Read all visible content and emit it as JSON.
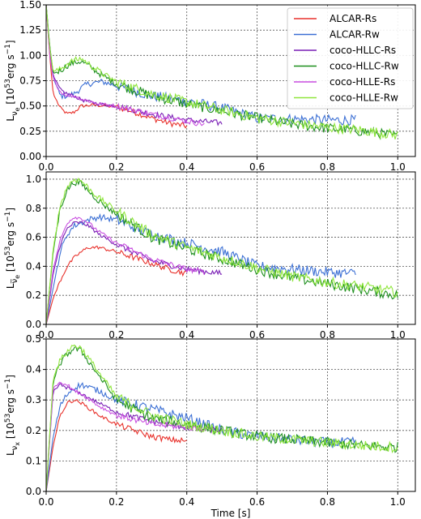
{
  "chart_data": [
    {
      "type": "line",
      "ylabel": "L_νe [10^53 erg s^-1]",
      "xlim": [
        0,
        1.05
      ],
      "ylim": [
        0,
        1.5
      ],
      "xticks": [
        0.0,
        0.2,
        0.4,
        0.6,
        0.8,
        1.0
      ],
      "yticks": [
        "0.00",
        "0.25",
        "0.50",
        "0.75",
        "1.00",
        "1.25",
        "1.50"
      ],
      "grid": true,
      "legend_position": "top-right",
      "series": [
        {
          "name": "ALCAR-Rs",
          "color": "#e8312b",
          "x": [
            0.0,
            0.01,
            0.02,
            0.04,
            0.06,
            0.08,
            0.1,
            0.14,
            0.2,
            0.25,
            0.3,
            0.35,
            0.4
          ],
          "y": [
            1.5,
            1.0,
            0.62,
            0.48,
            0.42,
            0.44,
            0.5,
            0.51,
            0.49,
            0.44,
            0.38,
            0.33,
            0.3
          ]
        },
        {
          "name": "ALCAR-Rw",
          "color": "#3b6fd4",
          "x": [
            0.0,
            0.01,
            0.02,
            0.04,
            0.06,
            0.08,
            0.1,
            0.12,
            0.16,
            0.2,
            0.3,
            0.4,
            0.5,
            0.6,
            0.7,
            0.8,
            0.88
          ],
          "y": [
            1.5,
            1.1,
            0.78,
            0.6,
            0.6,
            0.62,
            0.68,
            0.72,
            0.74,
            0.7,
            0.6,
            0.55,
            0.48,
            0.38,
            0.37,
            0.36,
            0.36
          ]
        },
        {
          "name": "coco-HLLC-Rs",
          "color": "#7a1fb5",
          "x": [
            0.0,
            0.01,
            0.02,
            0.04,
            0.06,
            0.08,
            0.1,
            0.15,
            0.2,
            0.3,
            0.4,
            0.5
          ],
          "y": [
            1.5,
            1.05,
            0.8,
            0.66,
            0.62,
            0.6,
            0.56,
            0.52,
            0.5,
            0.42,
            0.36,
            0.33
          ]
        },
        {
          "name": "coco-HLLC-Rw",
          "color": "#1e8f1e",
          "x": [
            0.0,
            0.01,
            0.02,
            0.04,
            0.06,
            0.08,
            0.1,
            0.12,
            0.16,
            0.2,
            0.3,
            0.4,
            0.5,
            0.6,
            0.7,
            0.8,
            0.9,
            1.0
          ],
          "y": [
            1.5,
            1.1,
            0.82,
            0.85,
            0.9,
            0.93,
            0.94,
            0.9,
            0.8,
            0.72,
            0.6,
            0.52,
            0.45,
            0.38,
            0.32,
            0.28,
            0.25,
            0.2
          ]
        },
        {
          "name": "coco-HLLE-Rs",
          "color": "#c94fe0",
          "x": [
            0.0,
            0.01,
            0.02,
            0.04,
            0.06,
            0.08,
            0.1,
            0.15,
            0.2,
            0.3,
            0.4,
            0.45
          ],
          "y": [
            1.5,
            1.0,
            0.78,
            0.64,
            0.6,
            0.6,
            0.57,
            0.52,
            0.5,
            0.42,
            0.35,
            0.32
          ]
        },
        {
          "name": "coco-HLLE-Rw",
          "color": "#8fe63c",
          "x": [
            0.0,
            0.01,
            0.02,
            0.04,
            0.06,
            0.08,
            0.1,
            0.12,
            0.16,
            0.2,
            0.3,
            0.4,
            0.5,
            0.6,
            0.7,
            0.8,
            0.9,
            1.0
          ],
          "y": [
            1.5,
            1.08,
            0.84,
            0.86,
            0.92,
            0.95,
            0.97,
            0.92,
            0.82,
            0.74,
            0.62,
            0.54,
            0.46,
            0.38,
            0.33,
            0.29,
            0.26,
            0.21
          ]
        }
      ]
    },
    {
      "type": "line",
      "ylabel": "L_ν̄e [10^53 erg s^-1]",
      "xlim": [
        0,
        1.05
      ],
      "ylim": [
        0,
        1.05
      ],
      "xticks": [
        0.0,
        0.2,
        0.4,
        0.6,
        0.8,
        1.0
      ],
      "yticks": [
        "0.0",
        "0.2",
        "0.4",
        "0.6",
        "0.8",
        "1.0"
      ],
      "grid": true,
      "series": [
        {
          "name": "ALCAR-Rs",
          "color": "#e8312b",
          "x": [
            0.0,
            0.02,
            0.04,
            0.06,
            0.08,
            0.1,
            0.12,
            0.15,
            0.2,
            0.25,
            0.3,
            0.35,
            0.4
          ],
          "y": [
            0.0,
            0.18,
            0.3,
            0.4,
            0.46,
            0.5,
            0.53,
            0.53,
            0.5,
            0.46,
            0.42,
            0.38,
            0.35
          ]
        },
        {
          "name": "ALCAR-Rw",
          "color": "#3b6fd4",
          "x": [
            0.0,
            0.02,
            0.04,
            0.06,
            0.08,
            0.1,
            0.12,
            0.15,
            0.2,
            0.3,
            0.4,
            0.5,
            0.6,
            0.7,
            0.8,
            0.88
          ],
          "y": [
            0.0,
            0.25,
            0.5,
            0.62,
            0.68,
            0.7,
            0.72,
            0.74,
            0.72,
            0.62,
            0.56,
            0.5,
            0.4,
            0.38,
            0.36,
            0.35
          ]
        },
        {
          "name": "coco-HLLC-Rs",
          "color": "#7a1fb5",
          "x": [
            0.0,
            0.02,
            0.04,
            0.06,
            0.08,
            0.1,
            0.12,
            0.15,
            0.2,
            0.3,
            0.4,
            0.5
          ],
          "y": [
            0.0,
            0.35,
            0.55,
            0.66,
            0.7,
            0.7,
            0.68,
            0.62,
            0.55,
            0.44,
            0.38,
            0.35
          ]
        },
        {
          "name": "coco-HLLC-Rw",
          "color": "#1e8f1e",
          "x": [
            0.0,
            0.02,
            0.04,
            0.06,
            0.08,
            0.1,
            0.12,
            0.15,
            0.2,
            0.3,
            0.4,
            0.5,
            0.6,
            0.7,
            0.8,
            0.9,
            1.0
          ],
          "y": [
            0.0,
            0.5,
            0.8,
            0.93,
            0.98,
            0.97,
            0.92,
            0.85,
            0.76,
            0.6,
            0.52,
            0.45,
            0.38,
            0.32,
            0.28,
            0.24,
            0.2
          ]
        },
        {
          "name": "coco-HLLE-Rs",
          "color": "#c94fe0",
          "x": [
            0.0,
            0.02,
            0.04,
            0.06,
            0.08,
            0.1,
            0.12,
            0.15,
            0.2,
            0.3,
            0.4,
            0.45
          ],
          "y": [
            0.0,
            0.38,
            0.58,
            0.7,
            0.74,
            0.73,
            0.7,
            0.64,
            0.56,
            0.45,
            0.38,
            0.36
          ]
        },
        {
          "name": "coco-HLLE-Rw",
          "color": "#8fe63c",
          "x": [
            0.0,
            0.02,
            0.04,
            0.06,
            0.08,
            0.1,
            0.12,
            0.15,
            0.2,
            0.3,
            0.4,
            0.5,
            0.6,
            0.7,
            0.8,
            0.9,
            1.0
          ],
          "y": [
            0.0,
            0.52,
            0.82,
            0.95,
            1.0,
            0.99,
            0.94,
            0.87,
            0.78,
            0.62,
            0.53,
            0.46,
            0.39,
            0.33,
            0.29,
            0.26,
            0.22
          ]
        }
      ]
    },
    {
      "type": "line",
      "ylabel": "L_νx [10^53 erg s^-1]",
      "xlabel": "Time [s]",
      "xlim": [
        0,
        1.05
      ],
      "ylim": [
        0,
        0.5
      ],
      "xticks": [
        0.0,
        0.2,
        0.4,
        0.6,
        0.8,
        1.0
      ],
      "yticks": [
        "0.0",
        "0.1",
        "0.2",
        "0.3",
        "0.4",
        "0.5"
      ],
      "grid": true,
      "series": [
        {
          "name": "ALCAR-Rs",
          "color": "#e8312b",
          "x": [
            0.0,
            0.02,
            0.04,
            0.06,
            0.08,
            0.1,
            0.15,
            0.2,
            0.25,
            0.3,
            0.35,
            0.4
          ],
          "y": [
            0.0,
            0.15,
            0.25,
            0.29,
            0.3,
            0.29,
            0.25,
            0.22,
            0.2,
            0.18,
            0.17,
            0.165
          ]
        },
        {
          "name": "ALCAR-Rw",
          "color": "#3b6fd4",
          "x": [
            0.0,
            0.02,
            0.04,
            0.06,
            0.08,
            0.1,
            0.15,
            0.2,
            0.3,
            0.4,
            0.5,
            0.6,
            0.7,
            0.8,
            0.88
          ],
          "y": [
            0.0,
            0.18,
            0.28,
            0.32,
            0.34,
            0.35,
            0.33,
            0.3,
            0.27,
            0.24,
            0.2,
            0.18,
            0.17,
            0.16,
            0.16
          ]
        },
        {
          "name": "coco-HLLC-Rs",
          "color": "#7a1fb5",
          "x": [
            0.0,
            0.02,
            0.04,
            0.06,
            0.08,
            0.1,
            0.15,
            0.2,
            0.3,
            0.4,
            0.5
          ],
          "y": [
            0.0,
            0.33,
            0.35,
            0.34,
            0.33,
            0.32,
            0.29,
            0.26,
            0.23,
            0.21,
            0.2
          ]
        },
        {
          "name": "coco-HLLC-Rw",
          "color": "#1e8f1e",
          "x": [
            0.0,
            0.02,
            0.04,
            0.06,
            0.08,
            0.1,
            0.15,
            0.2,
            0.3,
            0.4,
            0.5,
            0.6,
            0.7,
            0.8,
            0.9,
            1.0
          ],
          "y": [
            0.0,
            0.36,
            0.42,
            0.45,
            0.47,
            0.46,
            0.38,
            0.3,
            0.24,
            0.22,
            0.2,
            0.18,
            0.17,
            0.16,
            0.15,
            0.145
          ]
        },
        {
          "name": "coco-HLLE-Rs",
          "color": "#c94fe0",
          "x": [
            0.0,
            0.02,
            0.04,
            0.06,
            0.08,
            0.1,
            0.15,
            0.2,
            0.3,
            0.4,
            0.45
          ],
          "y": [
            0.0,
            0.34,
            0.36,
            0.35,
            0.33,
            0.32,
            0.28,
            0.25,
            0.22,
            0.21,
            0.205
          ]
        },
        {
          "name": "coco-HLLE-Rw",
          "color": "#8fe63c",
          "x": [
            0.0,
            0.02,
            0.04,
            0.06,
            0.08,
            0.1,
            0.15,
            0.2,
            0.3,
            0.4,
            0.5,
            0.6,
            0.7,
            0.8,
            0.9,
            1.0
          ],
          "y": [
            0.0,
            0.37,
            0.43,
            0.46,
            0.48,
            0.47,
            0.39,
            0.31,
            0.25,
            0.22,
            0.2,
            0.18,
            0.17,
            0.16,
            0.15,
            0.145
          ]
        }
      ]
    }
  ]
}
